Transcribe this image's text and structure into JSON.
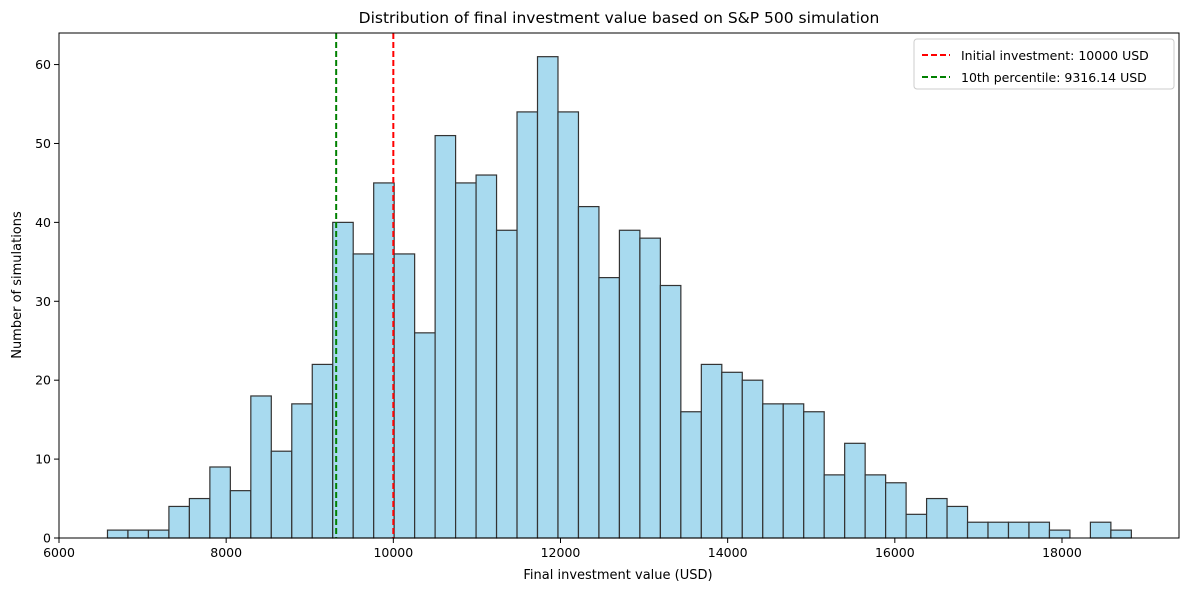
{
  "chart_data": {
    "type": "bar",
    "title": "Distribution of final investment value based on S&P 500 simulation",
    "xlabel": "Final investment value (USD)",
    "ylabel": "Number of simulations",
    "xlim": [
      6000,
      19400
    ],
    "ylim": [
      0,
      64
    ],
    "xticks": [
      6000,
      8000,
      10000,
      12000,
      14000,
      16000,
      18000
    ],
    "yticks": [
      0,
      10,
      20,
      30,
      40,
      50,
      60
    ],
    "bar_color": "#a8daef",
    "bar_edge_color": "#333333",
    "grid": false,
    "legend_position": "top-right",
    "bin_start": 6580,
    "bin_width": 245,
    "counts": [
      1,
      1,
      1,
      4,
      5,
      9,
      6,
      18,
      11,
      17,
      22,
      40,
      36,
      45,
      36,
      26,
      51,
      45,
      46,
      39,
      54,
      61,
      54,
      42,
      33,
      39,
      38,
      32,
      16,
      22,
      21,
      20,
      17,
      17,
      16,
      8,
      12,
      8,
      7,
      3,
      5,
      4,
      2,
      2,
      2,
      2,
      1,
      0,
      2,
      1
    ],
    "reference_lines": [
      {
        "label": "Initial investment: 10000 USD",
        "x": 10000,
        "color": "#ff0000"
      },
      {
        "label": "10th percentile: 9316.14 USD",
        "x": 9316.14,
        "color": "#008000"
      }
    ]
  }
}
